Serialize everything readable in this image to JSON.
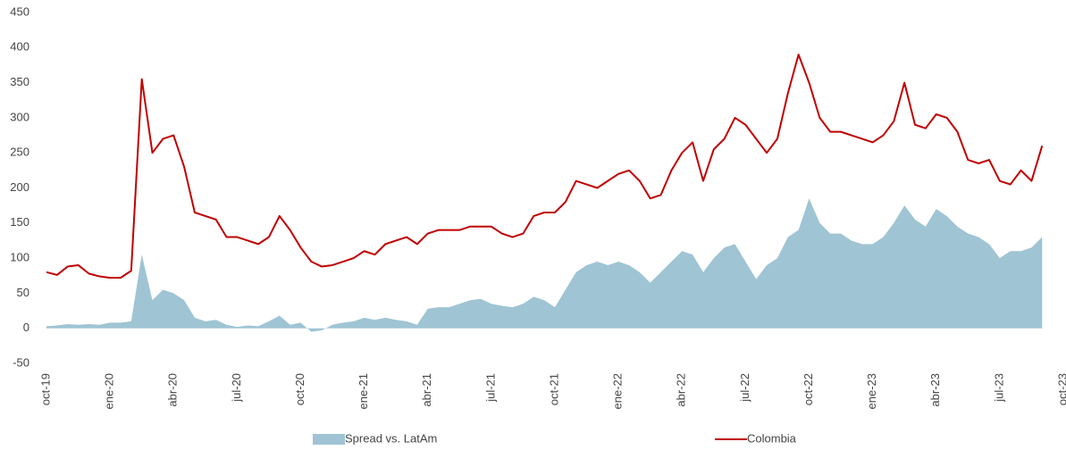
{
  "chart_data": {
    "type": "line",
    "categories": [
      "oct-19",
      null,
      null,
      null,
      null,
      null,
      "ene-20",
      null,
      null,
      null,
      null,
      null,
      "abr-20",
      null,
      null,
      null,
      null,
      null,
      "jul-20",
      null,
      null,
      null,
      null,
      null,
      "oct-20",
      null,
      null,
      null,
      null,
      null,
      "ene-21",
      null,
      null,
      null,
      null,
      null,
      "abr-21",
      null,
      null,
      null,
      null,
      null,
      "jul-21",
      null,
      null,
      null,
      null,
      null,
      "oct-21",
      null,
      null,
      null,
      null,
      null,
      "ene-22",
      null,
      null,
      null,
      null,
      null,
      "abr-22",
      null,
      null,
      null,
      null,
      null,
      "jul-22",
      null,
      null,
      null,
      null,
      null,
      "oct-22",
      null,
      null,
      null,
      null,
      null,
      "ene-23",
      null,
      null,
      null,
      null,
      null,
      "abr-23",
      null,
      null,
      null,
      null,
      null,
      "jul-23",
      null,
      null,
      null,
      null,
      null,
      "oct-23"
    ],
    "series": [
      {
        "name": "Spread vs. LatAm",
        "type": "area",
        "color": "#9fc4d4",
        "values": [
          3,
          4,
          6,
          5,
          6,
          5,
          8,
          8,
          10,
          105,
          40,
          55,
          50,
          40,
          15,
          10,
          12,
          5,
          2,
          4,
          3,
          10,
          18,
          5,
          8,
          -5,
          -3,
          5,
          8,
          10,
          15,
          12,
          15,
          12,
          10,
          5,
          28,
          30,
          30,
          35,
          40,
          42,
          35,
          32,
          30,
          35,
          45,
          40,
          30,
          55,
          80,
          90,
          95,
          90,
          95,
          90,
          80,
          65,
          80,
          95,
          110,
          105,
          80,
          100,
          115,
          120,
          95,
          70,
          90,
          100,
          130,
          140,
          185,
          150,
          135,
          135,
          125,
          120,
          120,
          130,
          150,
          175,
          155,
          145,
          170,
          160,
          145,
          135,
          130,
          120,
          100,
          110,
          110,
          115,
          130,
          null,
          null
        ]
      },
      {
        "name": "Colombia",
        "type": "line",
        "color": "#c00000",
        "values": [
          80,
          76,
          88,
          90,
          78,
          74,
          72,
          72,
          82,
          355,
          250,
          270,
          275,
          230,
          165,
          160,
          155,
          130,
          130,
          125,
          120,
          130,
          160,
          140,
          115,
          95,
          88,
          90,
          95,
          100,
          110,
          105,
          120,
          125,
          130,
          120,
          135,
          140,
          140,
          140,
          145,
          145,
          145,
          135,
          130,
          135,
          160,
          165,
          165,
          180,
          210,
          205,
          200,
          210,
          220,
          225,
          210,
          185,
          190,
          225,
          250,
          265,
          210,
          255,
          270,
          300,
          290,
          270,
          250,
          270,
          335,
          390,
          350,
          300,
          280,
          280,
          275,
          270,
          265,
          275,
          295,
          350,
          290,
          285,
          305,
          300,
          280,
          240,
          235,
          240,
          210,
          205,
          225,
          210,
          260,
          null,
          null
        ]
      }
    ],
    "ylim": [
      -50,
      450
    ],
    "yticks": [
      -50,
      0,
      50,
      100,
      150,
      200,
      250,
      300,
      350,
      400,
      450
    ],
    "legend": "bottom"
  }
}
